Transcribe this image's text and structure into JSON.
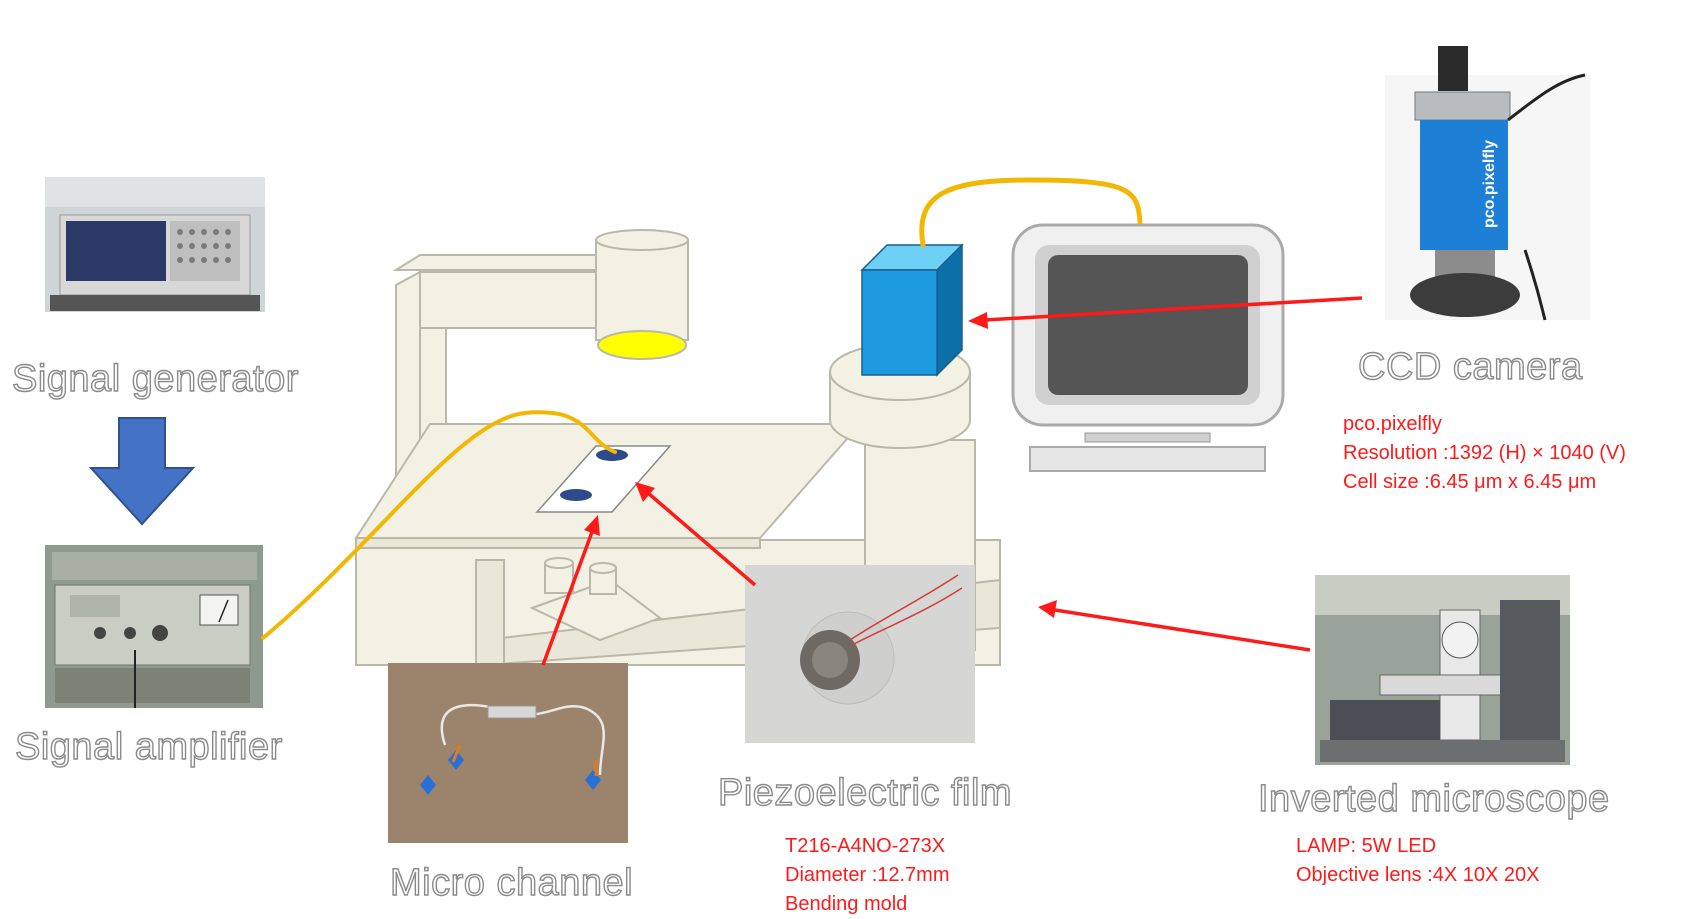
{
  "labels": {
    "signal_generator": "Signal generator",
    "signal_amplifier": "Signal amplifier",
    "micro_channel": "Micro channel",
    "piezoelectric_film": "Piezoelectric film",
    "inverted_microscope": "Inverted microscope",
    "ccd_camera": "CCD camera"
  },
  "camera_specs": {
    "model": "pco.pixelfly",
    "resolution": "Resolution :1392 (H) × 1040 (V)",
    "cell_size": "Cell size :6.45 μm x 6.45 μm"
  },
  "camera_photo_text": "pco.pixelfly",
  "piezo_specs": {
    "model": "T216-A4NO-273X",
    "diameter": "Diameter :12.7mm",
    "mold": "Bending mold"
  },
  "microscope_specs": {
    "lamp": "LAMP: 5W LED",
    "objective": "Objective lens :4X 10X 20X"
  },
  "colors": {
    "arrow_red": "#ff1a1a",
    "cable_yellow": "#f2b705",
    "flow_arrow_blue": "#4472c4",
    "camera_blue": "#1e9be0",
    "lamp_yellow": "#ffff00",
    "label_text": "#ffffff",
    "label_outline": "#8a8a8a",
    "spec_text": "#ff1a1a"
  }
}
